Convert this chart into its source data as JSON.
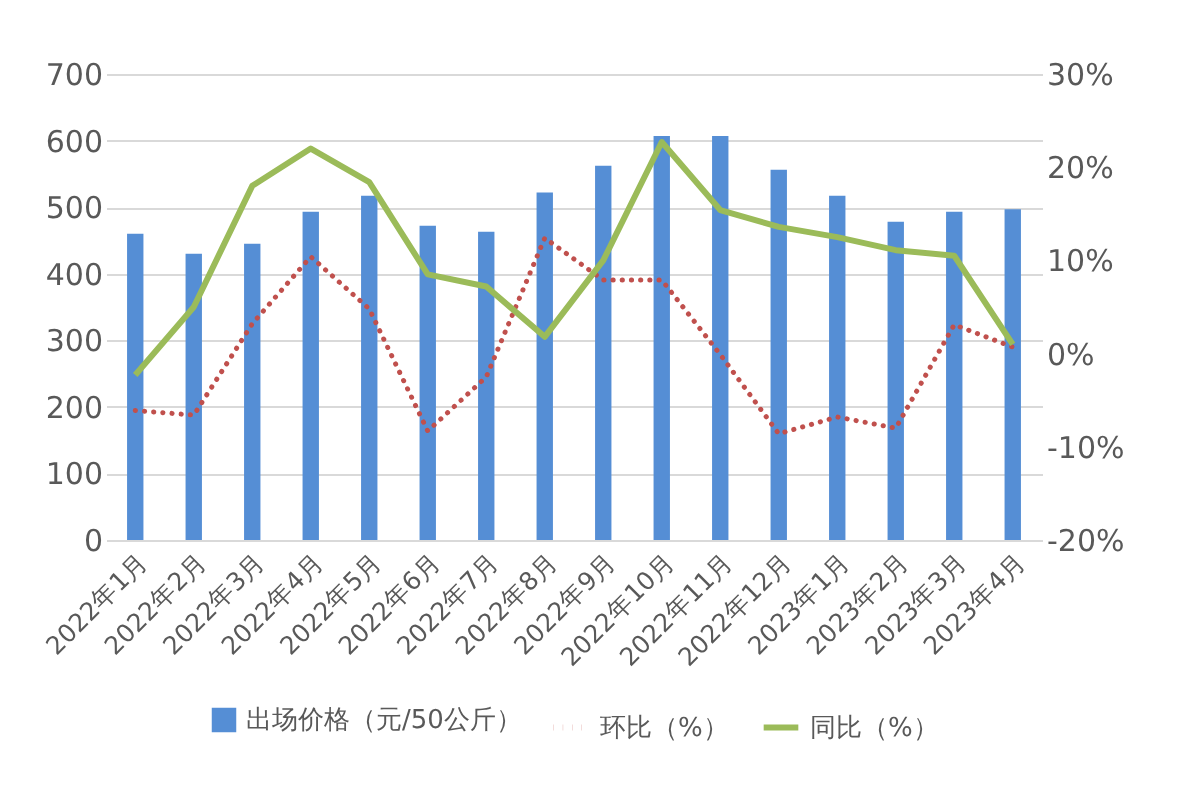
{
  "chart_data": {
    "type": "bar",
    "categories": [
      "2022年1月",
      "2022年2月",
      "2022年3月",
      "2022年4月",
      "2022年5月",
      "2022年6月",
      "2022年7月",
      "2022年8月",
      "2022年9月",
      "2022年10月",
      "2022年11月",
      "2022年12月",
      "2023年1月",
      "2023年2月",
      "2023年3月",
      "2023年4月"
    ],
    "series": [
      {
        "name": "出场价格（元/50公斤）",
        "color": "#558ed5",
        "values": [
          460,
          430,
          445,
          493,
          517,
          472,
          463,
          522,
          562,
          607,
          607,
          556,
          517,
          478,
          493,
          497
        ]
      },
      {
        "name": "环比（%）",
        "type": "line",
        "axis": "y2",
        "line_style": "dotted",
        "color": "#c0504d",
        "values": [
          -6.1,
          -6.6,
          3.2,
          10.4,
          4.8,
          -8.3,
          -2.5,
          12.4,
          7.9,
          7.9,
          -0.1,
          -8.6,
          -6.8,
          -8,
          3.1,
          0.7
        ]
      },
      {
        "name": "同比（%）",
        "type": "line",
        "axis": "y2",
        "line_style": "solid",
        "color": "#9bbb59",
        "values": [
          -2.3,
          5,
          18,
          22,
          18.4,
          8.5,
          7.2,
          1.8,
          10,
          22.7,
          15.4,
          13.6,
          12.5,
          11.1,
          10.5,
          1
        ]
      }
    ],
    "ylim": [
      0,
      700
    ],
    "yticks": [
      0,
      100,
      200,
      300,
      400,
      500,
      600,
      700
    ],
    "y2lim": [
      -20,
      30
    ],
    "y2ticks": [
      {
        "value": -20,
        "label": "-20%"
      },
      {
        "value": -10,
        "label": "-10%"
      },
      {
        "value": 0,
        "label": "0%"
      },
      {
        "value": 10,
        "label": "10%"
      },
      {
        "value": 20,
        "label": "20%"
      },
      {
        "value": 30,
        "label": "30%"
      }
    ],
    "grid": "y",
    "legend": "bottom"
  }
}
